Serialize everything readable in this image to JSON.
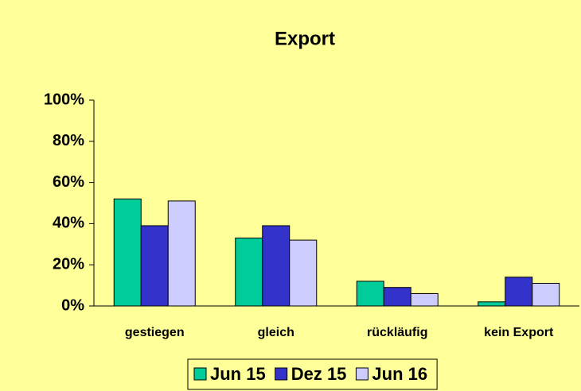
{
  "chart_data": {
    "type": "bar",
    "title": "Export",
    "categories": [
      "gestiegen",
      "gleich",
      "rückläufig",
      "kein Export"
    ],
    "series": [
      {
        "name": "Jun 15",
        "color": "#00cc99",
        "values": [
          52,
          33,
          12,
          2
        ]
      },
      {
        "name": "Dez 15",
        "color": "#3333cc",
        "values": [
          39,
          39,
          9,
          14
        ]
      },
      {
        "name": "Jun 16",
        "color": "#ccccff",
        "values": [
          51,
          32,
          6,
          11
        ]
      }
    ],
    "ylim": [
      0,
      100
    ],
    "yticks": [
      {
        "value": 0,
        "label": "0%"
      },
      {
        "value": 20,
        "label": "20%"
      },
      {
        "value": 40,
        "label": "40%"
      },
      {
        "value": 60,
        "label": "60%"
      },
      {
        "value": 80,
        "label": "80%"
      },
      {
        "value": 100,
        "label": "100%"
      }
    ],
    "legend": "bottom"
  }
}
